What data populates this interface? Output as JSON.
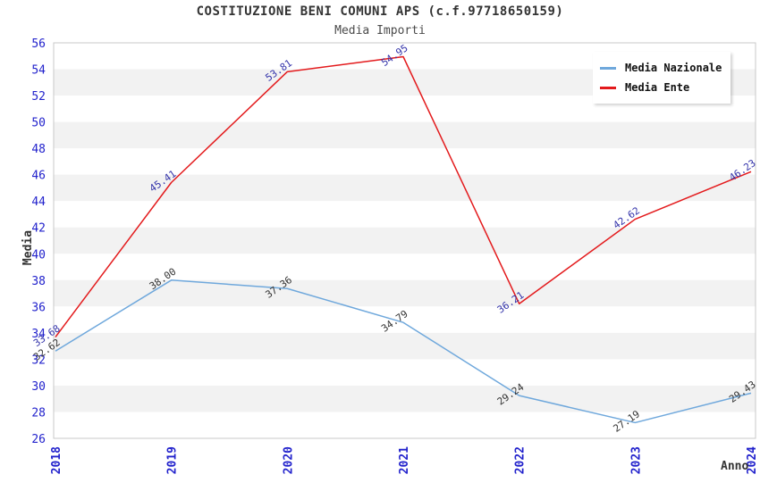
{
  "chart_data": {
    "type": "line",
    "title": "COSTITUZIONE BENI COMUNI APS (c.f.97718650159)",
    "subtitle": "Media Importi",
    "xlabel": "Anno",
    "ylabel": "Media",
    "categories": [
      "2018",
      "2019",
      "2020",
      "2021",
      "2022",
      "2023",
      "2024"
    ],
    "ylim": [
      26,
      56
    ],
    "ytick_step": 2,
    "grid": "alternating-horizontal-bands",
    "legend_position": "top-right",
    "series": [
      {
        "name": "Media Nazionale",
        "color": "#6fa8dc",
        "label_color": "#333333",
        "values": [
          32.62,
          38.0,
          37.36,
          34.79,
          29.24,
          27.19,
          29.43
        ]
      },
      {
        "name": "Media Ente",
        "color": "#e31a1c",
        "label_color": "#3333aa",
        "values": [
          33.68,
          45.41,
          53.81,
          54.95,
          36.21,
          42.62,
          46.23
        ]
      }
    ],
    "colors": {
      "tick_label": "#2222cc",
      "band_gray": "#f2f2f2",
      "band_white": "#ffffff",
      "plot_border": "#c8c8c8",
      "title_text": "#333333"
    }
  }
}
